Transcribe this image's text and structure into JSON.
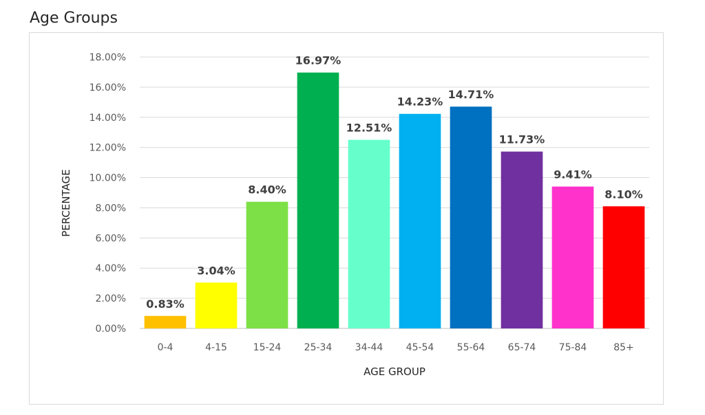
{
  "page_title": "Age Groups",
  "colors": {
    "gridline": "#d9d9d9",
    "axis": "#bfbfbf",
    "frame": "#d9d9d9"
  },
  "chart_data": {
    "type": "bar",
    "title": "",
    "xlabel": "AGE GROUP",
    "ylabel": "PERCENTAGE",
    "categories": [
      "0-4",
      "4-15",
      "15-24",
      "25-34",
      "34-44",
      "45-54",
      "55-64",
      "65-74",
      "75-84",
      "85+"
    ],
    "values": [
      0.83,
      3.04,
      8.4,
      16.97,
      12.51,
      14.23,
      14.71,
      11.73,
      9.41,
      8.1
    ],
    "data_labels": [
      "0.83%",
      "3.04%",
      "8.40%",
      "16.97%",
      "12.51%",
      "14.23%",
      "14.71%",
      "11.73%",
      "9.41%",
      "8.10%"
    ],
    "bar_colors": [
      "#FFC000",
      "#FFFF00",
      "#7CE046",
      "#00B050",
      "#66FFCC",
      "#00B0F0",
      "#0070C0",
      "#7030A0",
      "#FF33CC",
      "#FF0000"
    ],
    "ylim": [
      0,
      18
    ],
    "yticks": [
      0,
      2,
      4,
      6,
      8,
      10,
      12,
      14,
      16,
      18
    ],
    "ytick_labels": [
      "0.00%",
      "2.00%",
      "4.00%",
      "6.00%",
      "8.00%",
      "10.00%",
      "12.00%",
      "14.00%",
      "16.00%",
      "18.00%"
    ],
    "grid": true,
    "legend": "none"
  }
}
